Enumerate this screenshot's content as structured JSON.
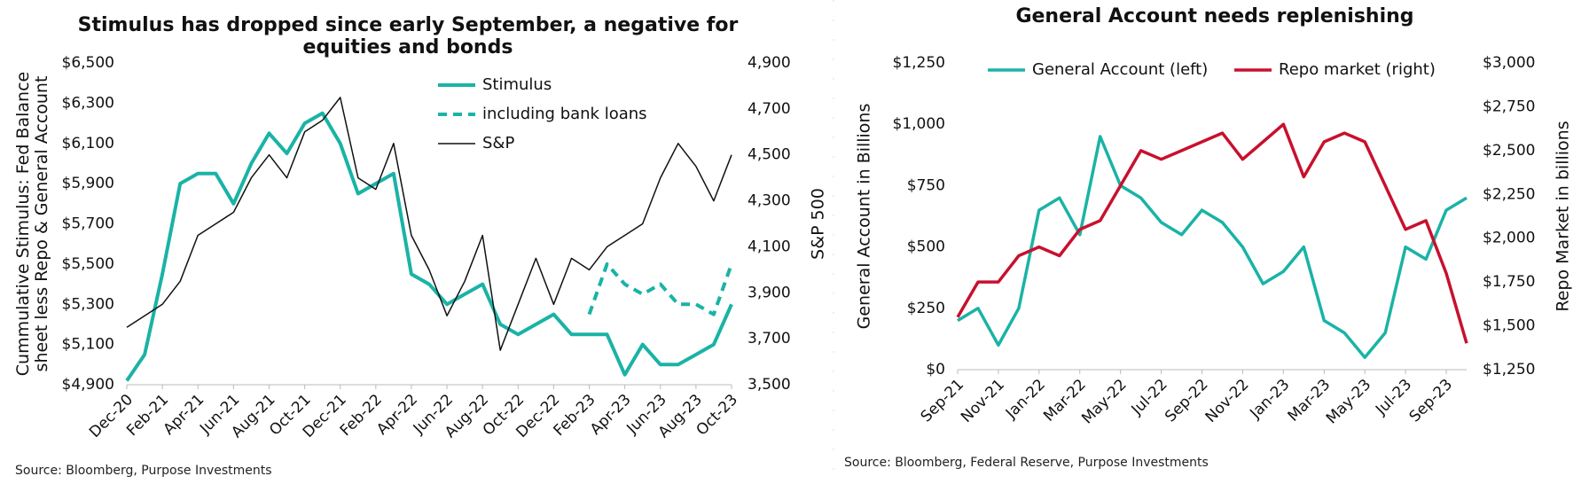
{
  "chart_data": [
    {
      "type": "line",
      "title": "Stimulus has dropped since early September, a negative for equities and bonds",
      "y_label": "Cummulative Stimulus: Fed Balance sheet less Repo & General Account",
      "y2_label": "S&P 500",
      "source": "Source: Bloomberg, Purpose Investments",
      "categories": [
        "Dec-20",
        null,
        "Feb-21",
        null,
        "Apr-21",
        null,
        "Jun-21",
        null,
        "Aug-21",
        null,
        "Oct-21",
        null,
        "Dec-21",
        null,
        "Feb-22",
        null,
        "Apr-22",
        null,
        "Jun-22",
        null,
        "Aug-22",
        null,
        "Oct-22",
        null,
        "Dec-22",
        null,
        "Feb-23",
        null,
        "Apr-23",
        null,
        "Jun-23",
        null,
        "Aug-23",
        null,
        "Oct-23"
      ],
      "series": [
        {
          "name": "Stimulus",
          "color": "#1ab3a6",
          "axis": "y",
          "line_style": "solid",
          "width": 4,
          "values": [
            4920,
            5050,
            5450,
            5900,
            5950,
            5950,
            5800,
            6000,
            6150,
            6050,
            6200,
            6250,
            6100,
            5850,
            5900,
            5950,
            5450,
            5400,
            5300,
            5350,
            5400,
            5200,
            5150,
            5200,
            5250,
            5150,
            5150,
            5150,
            4950,
            5100,
            5000,
            5000,
            5050,
            5100,
            5300
          ]
        },
        {
          "name": "including bank loans",
          "color": "#1ab3a6",
          "axis": "y",
          "line_style": "dashed",
          "width": 4,
          "values": [
            null,
            null,
            null,
            null,
            null,
            null,
            null,
            null,
            null,
            null,
            null,
            null,
            null,
            null,
            null,
            null,
            null,
            null,
            null,
            null,
            null,
            null,
            null,
            null,
            null,
            null,
            5250,
            5500,
            5400,
            5350,
            5400,
            5300,
            5300,
            5250,
            5500
          ]
        },
        {
          "name": "S&P",
          "color": "#111111",
          "axis": "y2",
          "line_style": "solid",
          "width": 1.5,
          "values": [
            3750,
            3800,
            3850,
            3950,
            4150,
            4200,
            4250,
            4400,
            4500,
            4400,
            4600,
            4650,
            4750,
            4400,
            4350,
            4550,
            4150,
            4000,
            3800,
            3950,
            4150,
            3650,
            3850,
            4050,
            3850,
            4050,
            4000,
            4100,
            4150,
            4200,
            4400,
            4550,
            4450,
            4300,
            4500
          ]
        }
      ],
      "ylim": [
        4900,
        6500
      ],
      "yticks": [
        {
          "value": 4900,
          "label": "$4,900"
        },
        {
          "value": 5100,
          "label": "$5,100"
        },
        {
          "value": 5300,
          "label": "$5,300"
        },
        {
          "value": 5500,
          "label": "$5,500"
        },
        {
          "value": 5700,
          "label": "$5,700"
        },
        {
          "value": 5900,
          "label": "$5,900"
        },
        {
          "value": 6100,
          "label": "$6,100"
        },
        {
          "value": 6300,
          "label": "$6,300"
        },
        {
          "value": 6500,
          "label": "$6,500"
        }
      ],
      "y2lim": [
        3500,
        4900
      ],
      "y2ticks": [
        {
          "value": 3500,
          "label": "3,500"
        },
        {
          "value": 3700,
          "label": "3,700"
        },
        {
          "value": 3900,
          "label": "3,900"
        },
        {
          "value": 4100,
          "label": "4,100"
        },
        {
          "value": 4300,
          "label": "4,300"
        },
        {
          "value": 4500,
          "label": "4,500"
        },
        {
          "value": 4700,
          "label": "4,700"
        },
        {
          "value": 4900,
          "label": "4,900"
        }
      ],
      "legend": "top-right",
      "grid": false
    },
    {
      "type": "line",
      "title": "General Account needs replenishing",
      "y_label": "General Account in Billions",
      "y2_label": "Repo Market in billions",
      "source": "Source: Bloomberg, Federal Reserve, Purpose Investments",
      "categories": [
        "Sep-21",
        null,
        "Nov-21",
        null,
        "Jan-22",
        null,
        "Mar-22",
        null,
        "May-22",
        null,
        "Jul-22",
        null,
        "Sep-22",
        null,
        "Nov-22",
        null,
        "Jan-23",
        null,
        "Mar-23",
        null,
        "May-23",
        null,
        "Jul-23",
        null,
        "Sep-23",
        null
      ],
      "series": [
        {
          "name": "General Account (left)",
          "color": "#1ab3a6",
          "axis": "y",
          "line_style": "solid",
          "width": 3.5,
          "values": [
            200,
            250,
            100,
            250,
            650,
            700,
            550,
            950,
            750,
            700,
            600,
            550,
            650,
            600,
            500,
            350,
            400,
            500,
            200,
            150,
            50,
            150,
            500,
            450,
            650,
            700
          ]
        },
        {
          "name": "Repo market (right)",
          "color": "#c8102e",
          "axis": "y2",
          "line_style": "solid",
          "width": 3.5,
          "values": [
            1550,
            1750,
            1750,
            1900,
            1950,
            1900,
            2050,
            2100,
            2300,
            2500,
            2450,
            2500,
            2550,
            2600,
            2450,
            2550,
            2650,
            2350,
            2550,
            2600,
            2550,
            2300,
            2050,
            2100,
            1800,
            1400
          ]
        }
      ],
      "ylim": [
        0,
        1250
      ],
      "yticks": [
        {
          "value": 0,
          "label": "$0"
        },
        {
          "value": 250,
          "label": "$250"
        },
        {
          "value": 500,
          "label": "$500"
        },
        {
          "value": 750,
          "label": "$750"
        },
        {
          "value": 1000,
          "label": "$1,000"
        },
        {
          "value": 1250,
          "label": "$1,250"
        }
      ],
      "y2lim": [
        1250,
        3000
      ],
      "y2ticks": [
        {
          "value": 1250,
          "label": "$1,250"
        },
        {
          "value": 1500,
          "label": "$1,500"
        },
        {
          "value": 1750,
          "label": "$1,750"
        },
        {
          "value": 2000,
          "label": "$2,000"
        },
        {
          "value": 2250,
          "label": "$2,250"
        },
        {
          "value": 2500,
          "label": "$2,500"
        },
        {
          "value": 2750,
          "label": "$2,750"
        },
        {
          "value": 3000,
          "label": "$3,000"
        }
      ],
      "legend": "top",
      "grid": false
    }
  ]
}
